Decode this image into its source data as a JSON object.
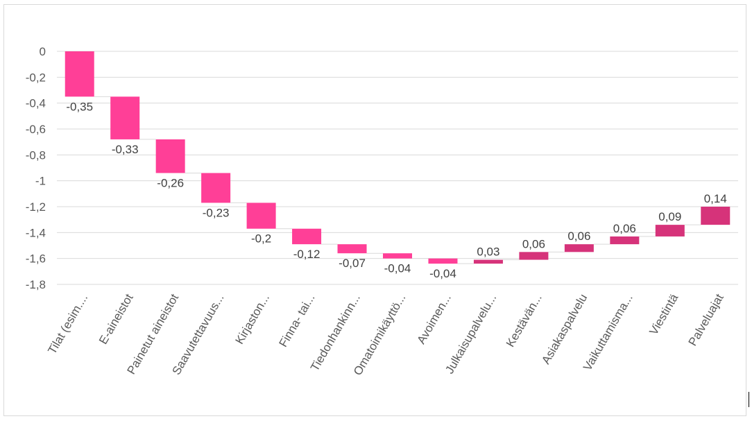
{
  "chart_data": {
    "type": "bar",
    "subtype": "waterfall",
    "title": "",
    "xlabel": "",
    "ylabel": "",
    "ylim": [
      -1.8,
      0
    ],
    "yticks": [
      0,
      -0.2,
      -0.4,
      -0.6,
      -0.8,
      -1,
      -1.2,
      -1.4,
      -1.6,
      -1.8
    ],
    "ytick_labels": [
      "0",
      "-0,2",
      "-0,4",
      "-0,6",
      "-0,8",
      "-1",
      "-1,2",
      "-1,4",
      "-1,6",
      "-1,8"
    ],
    "grid": true,
    "legend": "none",
    "categories": [
      "Tilat (esim....",
      "E-aineistot",
      "Painetut aineistot",
      "Saavutettavuus...",
      "Kirjaston...",
      "Finna- tai...",
      "Tiedonhankinn...",
      "Omatoimikäyttö...",
      "Avoimen...",
      "Julkaisupalvelu...",
      "Kestävän...",
      "Asiakaspalvelu",
      "Vaikuttamisma...",
      "Viestintä",
      "Palveluajat"
    ],
    "values": [
      -0.35,
      -0.33,
      -0.26,
      -0.23,
      -0.2,
      -0.12,
      -0.07,
      -0.04,
      -0.04,
      0.03,
      0.06,
      0.06,
      0.06,
      0.09,
      0.14
    ],
    "value_labels": [
      "-0,35",
      "-0,33",
      "-0,26",
      "-0,23",
      "-0,2",
      "-0,12",
      "-0,07",
      "-0,04",
      "-0,04",
      "0,03",
      "0,06",
      "0,06",
      "0,06",
      "0,09",
      "0,14"
    ],
    "colors": {
      "negative": "#ff3f97",
      "positive": "#d6337a",
      "grid": "#d9d9d9",
      "text": "#595959"
    }
  }
}
